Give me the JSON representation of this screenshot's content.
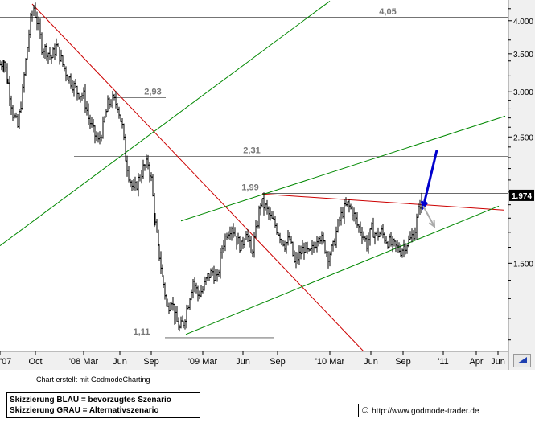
{
  "chart_data": {
    "type": "candlestick",
    "y_scale": "log",
    "ylim": [
      1.05,
      4.35
    ],
    "y_ticks": [
      {
        "value": 4.0,
        "label": "4.000"
      },
      {
        "value": 3.5,
        "label": "3.500"
      },
      {
        "value": 3.0,
        "label": "3.000"
      },
      {
        "value": 2.5,
        "label": "2.500"
      },
      {
        "value": 1.5,
        "label": "1.500"
      }
    ],
    "x_ticks": [
      "'07",
      "Oct",
      "'08 Mar",
      "Jun",
      "Sep",
      "'09 Mar",
      "Jun",
      "Sep",
      "'10 Mar",
      "Jun",
      "Sep",
      "'11",
      "Apr",
      "Jun"
    ],
    "x_tick_index": [
      0,
      44,
      104,
      149,
      188,
      252,
      302,
      345,
      410,
      461,
      501,
      551,
      592,
      619
    ],
    "last_price": {
      "value": 1.974,
      "label": "1,974"
    },
    "horizontal_levels": [
      {
        "value": 4.05,
        "label": "4,05"
      },
      {
        "value": 2.93,
        "label": "2,93"
      },
      {
        "value": 2.31,
        "label": "2,31"
      },
      {
        "value": 1.99,
        "label": "1,99"
      },
      {
        "value": 1.11,
        "label": "1,11"
      }
    ],
    "trendlines": [
      {
        "color": "#cc0000",
        "from": [
          40,
          4.28
        ],
        "to": [
          452,
          1.05
        ]
      },
      {
        "color": "#cc0000",
        "from": [
          326,
          1.985
        ],
        "to": [
          626,
          1.86
        ]
      },
      {
        "color": "#008800",
        "from": [
          0,
          1.61
        ],
        "to": [
          410,
          4.33
        ]
      },
      {
        "color": "#008800",
        "from": [
          225,
          1.78
        ],
        "to": [
          628,
          2.72
        ]
      },
      {
        "color": "#008800",
        "from": [
          231,
          1.125
        ],
        "to": [
          620,
          1.89
        ]
      }
    ],
    "arrows": [
      {
        "color": "#0000cc",
        "from": [
          543,
          2.37
        ],
        "to": [
          526,
          1.88
        ]
      },
      {
        "color": "#aaaaaa",
        "from": [
          526,
          1.89
        ],
        "to": [
          540,
          1.74
        ]
      }
    ],
    "close_anchors": [
      [
        0,
        3.35
      ],
      [
        5,
        3.4
      ],
      [
        10,
        3.1
      ],
      [
        16,
        2.75
      ],
      [
        22,
        2.6
      ],
      [
        28,
        3.0
      ],
      [
        34,
        3.6
      ],
      [
        38,
        4.0
      ],
      [
        42,
        4.22
      ],
      [
        46,
        4.0
      ],
      [
        52,
        3.6
      ],
      [
        58,
        3.55
      ],
      [
        64,
        3.45
      ],
      [
        70,
        3.6
      ],
      [
        78,
        3.35
      ],
      [
        84,
        3.2
      ],
      [
        90,
        3.1
      ],
      [
        96,
        3.0
      ],
      [
        104,
        2.95
      ],
      [
        110,
        2.7
      ],
      [
        116,
        2.55
      ],
      [
        122,
        2.45
      ],
      [
        128,
        2.6
      ],
      [
        134,
        2.85
      ],
      [
        140,
        2.9
      ],
      [
        146,
        2.85
      ],
      [
        152,
        2.6
      ],
      [
        156,
        2.3
      ],
      [
        160,
        2.15
      ],
      [
        166,
        2.0
      ],
      [
        172,
        2.1
      ],
      [
        178,
        2.2
      ],
      [
        184,
        2.25
      ],
      [
        188,
        2.1
      ],
      [
        193,
        1.75
      ],
      [
        198,
        1.55
      ],
      [
        203,
        1.38
      ],
      [
        208,
        1.25
      ],
      [
        213,
        1.3
      ],
      [
        218,
        1.2
      ],
      [
        223,
        1.15
      ],
      [
        228,
        1.18
      ],
      [
        234,
        1.28
      ],
      [
        240,
        1.4
      ],
      [
        246,
        1.32
      ],
      [
        252,
        1.35
      ],
      [
        258,
        1.42
      ],
      [
        264,
        1.45
      ],
      [
        270,
        1.4
      ],
      [
        276,
        1.6
      ],
      [
        282,
        1.7
      ],
      [
        288,
        1.75
      ],
      [
        294,
        1.65
      ],
      [
        300,
        1.6
      ],
      [
        306,
        1.72
      ],
      [
        312,
        1.55
      ],
      [
        318,
        1.7
      ],
      [
        324,
        1.92
      ],
      [
        330,
        1.88
      ],
      [
        336,
        1.8
      ],
      [
        342,
        1.75
      ],
      [
        348,
        1.68
      ],
      [
        354,
        1.62
      ],
      [
        360,
        1.65
      ],
      [
        366,
        1.5
      ],
      [
        372,
        1.55
      ],
      [
        378,
        1.6
      ],
      [
        384,
        1.55
      ],
      [
        390,
        1.6
      ],
      [
        396,
        1.7
      ],
      [
        402,
        1.62
      ],
      [
        408,
        1.55
      ],
      [
        414,
        1.6
      ],
      [
        420,
        1.75
      ],
      [
        426,
        1.85
      ],
      [
        432,
        1.9
      ],
      [
        438,
        1.85
      ],
      [
        444,
        1.75
      ],
      [
        450,
        1.7
      ],
      [
        456,
        1.62
      ],
      [
        462,
        1.72
      ],
      [
        468,
        1.68
      ],
      [
        474,
        1.7
      ],
      [
        480,
        1.65
      ],
      [
        486,
        1.62
      ],
      [
        492,
        1.6
      ],
      [
        498,
        1.58
      ],
      [
        504,
        1.62
      ],
      [
        510,
        1.65
      ],
      [
        516,
        1.72
      ],
      [
        520,
        1.85
      ],
      [
        524,
        1.974
      ]
    ]
  },
  "credit": "Chart erstellt mit GodmodeCharting",
  "legend": {
    "line1": "Skizzierung BLAU = bevorzugtes Szenario",
    "line2": "Skizzierung GRAU = Alternativszenario"
  },
  "website": {
    "copyright": "©",
    "url": "http://www.godmode-trader.de"
  },
  "colors": {
    "red_line": "#cc0000",
    "green_line": "#008800",
    "blue_arrow": "#0000cc",
    "gray_arrow": "#aaaaaa",
    "axis_bg": "#f0f0f0"
  }
}
